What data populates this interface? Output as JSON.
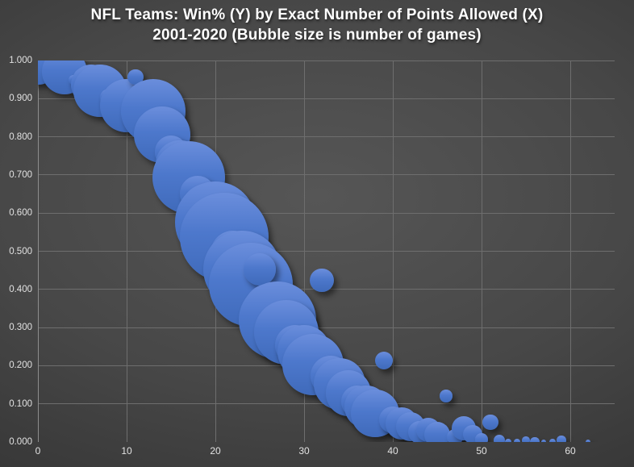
{
  "title": {
    "line1": "NFL Teams: Win% (Y) by Exact Number of Points Allowed (X)",
    "line2": "2001-2020 (Bubble size is number of games)"
  },
  "colors": {
    "bubble_top": "#6b8edc",
    "bubble_base": "#4472c4",
    "bubble_bottom": "#3f6aba",
    "background_center": "#565656",
    "background_edge": "#242424",
    "gridline": "#6e6e6e",
    "axis_line": "#8d8d8d",
    "tick_label": "#e2e2e2",
    "title_text": "#ffffff"
  },
  "axes": {
    "y_tick_labels": [
      "1.000",
      "0.900",
      "0.800",
      "0.700",
      "0.600",
      "0.500",
      "0.400",
      "0.300",
      "0.200",
      "0.100",
      "0.000"
    ],
    "x_tick_labels": [
      "0",
      "10",
      "20",
      "30",
      "40",
      "50",
      "60"
    ],
    "x_tick_values": [
      0,
      10,
      20,
      30,
      40,
      50,
      60
    ]
  },
  "chart_data": {
    "type": "scatter",
    "bubble": true,
    "title": "NFL Teams: Win% (Y) by Exact Number of Points Allowed (X) 2001-2020 (Bubble size is number of games)",
    "xlabel": "",
    "ylabel": "",
    "x_range": [
      0,
      65
    ],
    "y_range": [
      0,
      1
    ],
    "grid": true,
    "legend": false,
    "size_encoding": "number of games",
    "points": [
      {
        "points_allowed": 0,
        "win_pct": 0.99,
        "games": 140
      },
      {
        "points_allowed": 2,
        "win_pct": 0.966,
        "games": 12
      },
      {
        "points_allowed": 3,
        "win_pct": 0.971,
        "games": 170
      },
      {
        "points_allowed": 4,
        "win_pct": 0.95,
        "games": 8
      },
      {
        "points_allowed": 5,
        "win_pct": 0.957,
        "games": 25
      },
      {
        "points_allowed": 6,
        "win_pct": 0.936,
        "games": 135
      },
      {
        "points_allowed": 7,
        "win_pct": 0.921,
        "games": 230
      },
      {
        "points_allowed": 8,
        "win_pct": 0.901,
        "games": 28
      },
      {
        "points_allowed": 9,
        "win_pct": 0.907,
        "games": 40
      },
      {
        "points_allowed": 10,
        "win_pct": 0.882,
        "games": 235
      },
      {
        "points_allowed": 11,
        "win_pct": 0.956,
        "games": 20
      },
      {
        "points_allowed": 12,
        "win_pct": 0.852,
        "games": 60
      },
      {
        "points_allowed": 13,
        "win_pct": 0.866,
        "games": 345
      },
      {
        "points_allowed": 14,
        "win_pct": 0.805,
        "games": 265
      },
      {
        "points_allowed": 15,
        "win_pct": 0.76,
        "games": 90
      },
      {
        "points_allowed": 16,
        "win_pct": 0.728,
        "games": 190
      },
      {
        "points_allowed": 17,
        "win_pct": 0.694,
        "games": 435
      },
      {
        "points_allowed": 18,
        "win_pct": 0.652,
        "games": 105
      },
      {
        "points_allowed": 19,
        "win_pct": 0.613,
        "games": 200
      },
      {
        "points_allowed": 20,
        "win_pct": 0.576,
        "games": 540
      },
      {
        "points_allowed": 21,
        "win_pct": 0.536,
        "games": 650
      },
      {
        "points_allowed": 22,
        "win_pct": 0.494,
        "games": 170
      },
      {
        "points_allowed": 23,
        "win_pct": 0.452,
        "games": 495
      },
      {
        "points_allowed": 24,
        "win_pct": 0.413,
        "games": 580
      },
      {
        "points_allowed": 25,
        "win_pct": 0.453,
        "games": 85
      },
      {
        "points_allowed": 26,
        "win_pct": 0.352,
        "games": 190
      },
      {
        "points_allowed": 27,
        "win_pct": 0.32,
        "games": 495
      },
      {
        "points_allowed": 28,
        "win_pct": 0.288,
        "games": 345
      },
      {
        "points_allowed": 29,
        "win_pct": 0.253,
        "games": 135
      },
      {
        "points_allowed": 30,
        "win_pct": 0.236,
        "games": 235
      },
      {
        "points_allowed": 31,
        "win_pct": 0.203,
        "games": 310
      },
      {
        "points_allowed": 32,
        "win_pct": 0.424,
        "games": 48
      },
      {
        "points_allowed": 33,
        "win_pct": 0.173,
        "games": 135
      },
      {
        "points_allowed": 34,
        "win_pct": 0.152,
        "games": 220
      },
      {
        "points_allowed": 35,
        "win_pct": 0.128,
        "games": 170
      },
      {
        "points_allowed": 36,
        "win_pct": 0.105,
        "games": 85
      },
      {
        "points_allowed": 37,
        "win_pct": 0.092,
        "games": 155
      },
      {
        "points_allowed": 38,
        "win_pct": 0.075,
        "games": 190
      },
      {
        "points_allowed": 39,
        "win_pct": 0.214,
        "games": 26
      },
      {
        "points_allowed": 40,
        "win_pct": 0.058,
        "games": 60
      },
      {
        "points_allowed": 41,
        "win_pct": 0.048,
        "games": 86
      },
      {
        "points_allowed": 42,
        "win_pct": 0.04,
        "games": 70
      },
      {
        "points_allowed": 43,
        "win_pct": 0.026,
        "games": 42
      },
      {
        "points_allowed": 44,
        "win_pct": 0.032,
        "games": 48
      },
      {
        "points_allowed": 45,
        "win_pct": 0.018,
        "games": 55
      },
      {
        "points_allowed": 46,
        "win_pct": 0.121,
        "games": 13
      },
      {
        "points_allowed": 47,
        "win_pct": 0.012,
        "games": 21
      },
      {
        "points_allowed": 48,
        "win_pct": 0.036,
        "games": 48
      },
      {
        "points_allowed": 49,
        "win_pct": 0.02,
        "games": 30
      },
      {
        "points_allowed": 50,
        "win_pct": 0.006,
        "games": 13
      },
      {
        "points_allowed": 51,
        "win_pct": 0.052,
        "games": 21
      },
      {
        "points_allowed": 52,
        "win_pct": 0.004,
        "games": 11
      },
      {
        "points_allowed": 53,
        "win_pct": 0.0,
        "games": 4
      },
      {
        "points_allowed": 54,
        "win_pct": 0.0,
        "games": 4
      },
      {
        "points_allowed": 55,
        "win_pct": 0.004,
        "games": 5
      },
      {
        "points_allowed": 56,
        "win_pct": 0.0,
        "games": 7
      },
      {
        "points_allowed": 57,
        "win_pct": 0.0,
        "games": 2
      },
      {
        "points_allowed": 58,
        "win_pct": 0.0,
        "games": 4
      },
      {
        "points_allowed": 59,
        "win_pct": 0.004,
        "games": 7
      },
      {
        "points_allowed": 62,
        "win_pct": 0.0,
        "games": 2
      }
    ]
  }
}
